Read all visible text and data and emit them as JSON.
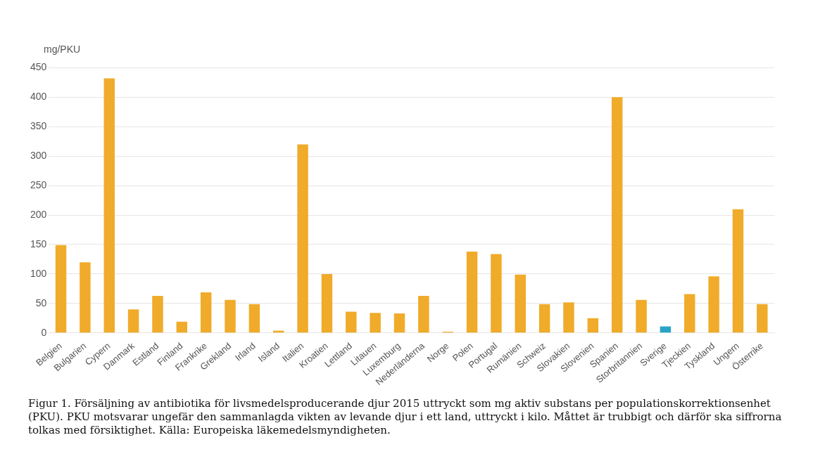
{
  "chart_data": {
    "type": "bar",
    "ylabel": "mg/PKU",
    "categories": [
      "Belgien",
      "Bulgarien",
      "Cypern",
      "Danmark",
      "Estland",
      "Finland",
      "Frankrike",
      "Grekland",
      "Irland",
      "Island",
      "Italien",
      "Kroatien",
      "Lettland",
      "Litauen",
      "Luxemburg",
      "Nederländerna",
      "Norge",
      "Polen",
      "Portugal",
      "Rumänien",
      "Schweiz",
      "Slovakien",
      "Slovenien",
      "Spanien",
      "Storbritannien",
      "Sverige",
      "Tjeckien",
      "Tyskland",
      "Ungern",
      "Österrike"
    ],
    "values": [
      149,
      120,
      432,
      40,
      63,
      19,
      69,
      56,
      49,
      4,
      320,
      100,
      36,
      34,
      33,
      63,
      2,
      138,
      134,
      99,
      49,
      52,
      25,
      400,
      56,
      11,
      66,
      96,
      210,
      49
    ],
    "colors": [
      "#f0ab2a",
      "#f0ab2a",
      "#f0ab2a",
      "#f0ab2a",
      "#f0ab2a",
      "#f0ab2a",
      "#f0ab2a",
      "#f0ab2a",
      "#f0ab2a",
      "#f0ab2a",
      "#f0ab2a",
      "#f0ab2a",
      "#f0ab2a",
      "#f0ab2a",
      "#f0ab2a",
      "#f0ab2a",
      "#f0ab2a",
      "#f0ab2a",
      "#f0ab2a",
      "#f0ab2a",
      "#f0ab2a",
      "#f0ab2a",
      "#f0ab2a",
      "#f0ab2a",
      "#f0ab2a",
      "#29a3c8",
      "#f0ab2a",
      "#f0ab2a",
      "#f0ab2a",
      "#f0ab2a"
    ],
    "ylim": [
      0,
      450
    ],
    "yticks": [
      0,
      50,
      100,
      150,
      200,
      250,
      300,
      350,
      400,
      450
    ],
    "grid": "y",
    "legend": false,
    "annotations": [
      "Figur 1. Försäljning av antibiotika för livsmedelsproducerande djur 2015 uttryckt som mg aktiv substans per populationskorrektionsenhet (PKU). PKU motsvarar ungefär den sammanlagda vikten av levande djur i ett land, uttryckt i kilo. Måttet är trubbigt och därför ska siffrorna tolkas med försiktighet.  Källa: Europeiska läkemedelsmyndigheten."
    ]
  }
}
